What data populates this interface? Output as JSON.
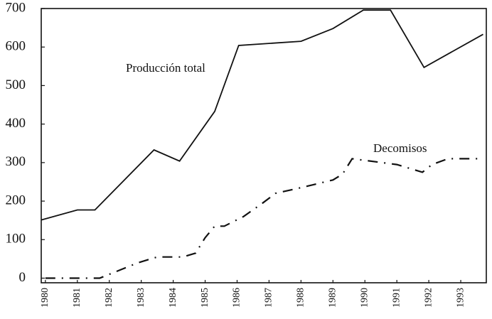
{
  "chart_data": {
    "type": "line",
    "xlim": [
      1979.87,
      1993.8
    ],
    "xticks": [
      1980,
      1981,
      1982,
      1983,
      1984,
      1985,
      1986,
      1987,
      1988,
      1989,
      1990,
      1991,
      1992,
      1993
    ],
    "ylim": [
      -12,
      700
    ],
    "yticks": [
      0,
      100,
      200,
      300,
      400,
      500,
      600,
      700
    ],
    "series": [
      {
        "name": "Producción total",
        "color": "#111111",
        "dash": false,
        "x": [
          1979.87,
          1981,
          1981.55,
          1983.4,
          1984.2,
          1985.3,
          1986.05,
          1988,
          1989,
          1989.95,
          1990.8,
          1991.85,
          1993.7
        ],
        "values": [
          151,
          177,
          177,
          333,
          304,
          433,
          604,
          615,
          648,
          696,
          696,
          547,
          633
        ]
      },
      {
        "name": "Decomisos",
        "color": "#111111",
        "dash": true,
        "x": [
          1980,
          1980.5,
          1981,
          1981.7,
          1982,
          1982.9,
          1983.5,
          1984.3,
          1984.7,
          1985,
          1985.3,
          1985.6,
          1986.2,
          1986.8,
          1987.2,
          1988,
          1989,
          1989.3,
          1989.6,
          1991,
          1991.8,
          1992.1,
          1992.6,
          1993.6
        ],
        "values": [
          0,
          0,
          0,
          0,
          10,
          40,
          55,
          55,
          65,
          105,
          135,
          135,
          160,
          195,
          220,
          235,
          255,
          270,
          310,
          295,
          275,
          295,
          310,
          310
        ]
      }
    ]
  }
}
